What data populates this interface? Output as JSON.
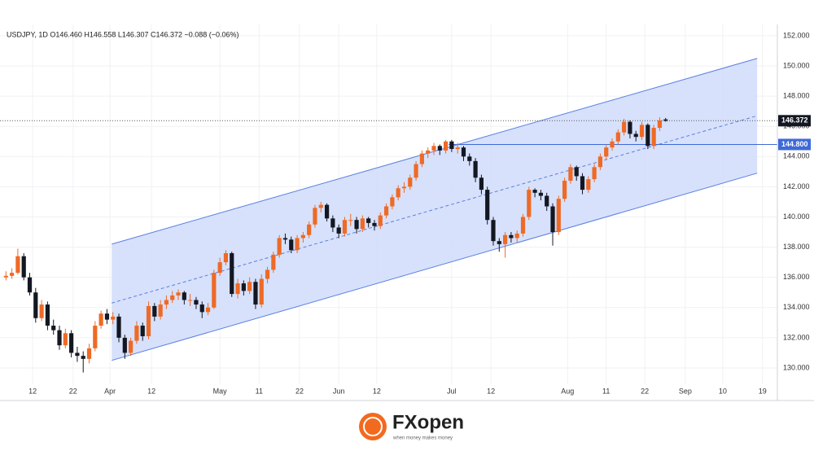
{
  "chart_data": {
    "type": "candlestick",
    "legend_text": "USDJPY, 1D  O146.460  H146.558  L146.307  C146.372  −0.088 (−0.06%)",
    "up_color": "#ee6a26",
    "down_color": "#131722",
    "ylim": [
      127.95,
      152.75
    ],
    "xlim": [
      -1,
      129.8
    ],
    "grid": true,
    "yticks": [
      {
        "value": 130,
        "label": "130.000"
      },
      {
        "value": 132,
        "label": "132.000"
      },
      {
        "value": 134,
        "label": "134.000"
      },
      {
        "value": 136,
        "label": "136.000"
      },
      {
        "value": 138,
        "label": "138.000"
      },
      {
        "value": 140,
        "label": "140.000"
      },
      {
        "value": 142,
        "label": "142.000"
      },
      {
        "value": 144,
        "label": "144.000"
      },
      {
        "value": 146,
        "label": "146.000"
      },
      {
        "value": 148,
        "label": "148.000"
      },
      {
        "value": 150,
        "label": "150.000"
      },
      {
        "value": 152,
        "label": "152.000"
      }
    ],
    "xticks": [
      {
        "value": 4.5,
        "label": "12"
      },
      {
        "value": 11.3,
        "label": "22"
      },
      {
        "value": 17.5,
        "label": "Apr"
      },
      {
        "value": 24.5,
        "label": "12"
      },
      {
        "value": 36,
        "label": "May"
      },
      {
        "value": 42.6,
        "label": "11"
      },
      {
        "value": 49.4,
        "label": "22"
      },
      {
        "value": 56,
        "label": "Jun"
      },
      {
        "value": 62.4,
        "label": "12"
      },
      {
        "value": 75,
        "label": "Jul"
      },
      {
        "value": 81.6,
        "label": "12"
      },
      {
        "value": 94.5,
        "label": "Aug"
      },
      {
        "value": 101,
        "label": "11"
      },
      {
        "value": 107.5,
        "label": "22"
      },
      {
        "value": 114.3,
        "label": "Sep"
      },
      {
        "value": 120.6,
        "label": "10"
      },
      {
        "value": 127.3,
        "label": "19"
      }
    ],
    "channel": {
      "x": [
        17.8,
        126.4
      ],
      "upper": [
        138.2,
        150.5
      ],
      "middle": [
        134.3,
        146.7
      ],
      "lower": [
        130.5,
        142.9
      ],
      "color": "#5b7fe3",
      "fill": "#d3defb"
    },
    "level": {
      "x": 74.5,
      "value": 144.8,
      "label": "144.800",
      "color": "#3e6ad8"
    },
    "price_line": {
      "value": 146.372,
      "label": "146.372"
    },
    "candles": [
      [
        136.0,
        136.4,
        135.8,
        136.1
      ],
      [
        136.1,
        136.6,
        135.9,
        136.3
      ],
      [
        136.3,
        137.9,
        136.2,
        137.4
      ],
      [
        137.4,
        137.6,
        135.8,
        136.0
      ],
      [
        136.0,
        136.3,
        134.8,
        135.0
      ],
      [
        135.0,
        135.3,
        133.0,
        133.3
      ],
      [
        133.3,
        134.5,
        133.1,
        134.2
      ],
      [
        134.2,
        134.4,
        132.5,
        132.8
      ],
      [
        132.8,
        133.2,
        132.2,
        132.5
      ],
      [
        132.5,
        132.8,
        131.2,
        131.5
      ],
      [
        131.5,
        132.6,
        131.3,
        132.3
      ],
      [
        132.3,
        132.5,
        130.7,
        131.0
      ],
      [
        131.0,
        131.4,
        130.4,
        130.8
      ],
      [
        130.8,
        131.1,
        129.7,
        130.6
      ],
      [
        130.6,
        131.6,
        130.3,
        131.3
      ],
      [
        131.3,
        133.1,
        131.1,
        132.8
      ],
      [
        132.8,
        133.8,
        132.6,
        133.6
      ],
      [
        133.6,
        133.9,
        132.9,
        133.2
      ],
      [
        133.2,
        133.7,
        132.9,
        133.4
      ],
      [
        133.4,
        133.6,
        131.7,
        132.0
      ],
      [
        132.0,
        132.2,
        130.6,
        131.0
      ],
      [
        131.0,
        132.0,
        130.8,
        131.8
      ],
      [
        131.8,
        133.1,
        131.6,
        132.8
      ],
      [
        132.8,
        133.0,
        131.8,
        132.1
      ],
      [
        132.1,
        134.4,
        131.9,
        134.1
      ],
      [
        134.1,
        134.3,
        133.1,
        133.4
      ],
      [
        133.4,
        134.5,
        133.2,
        134.2
      ],
      [
        134.2,
        134.8,
        133.9,
        134.5
      ],
      [
        134.5,
        135.1,
        134.3,
        134.8
      ],
      [
        134.8,
        135.2,
        134.5,
        135.0
      ],
      [
        135.0,
        135.1,
        134.2,
        134.5
      ],
      [
        134.5,
        134.9,
        134.1,
        134.5
      ],
      [
        134.5,
        134.7,
        133.9,
        134.2
      ],
      [
        134.2,
        134.4,
        133.3,
        133.7
      ],
      [
        133.7,
        134.3,
        133.5,
        134.0
      ],
      [
        134.0,
        136.5,
        133.9,
        136.3
      ],
      [
        136.3,
        137.3,
        136.1,
        137.0
      ],
      [
        137.0,
        137.8,
        136.8,
        137.6
      ],
      [
        137.6,
        137.7,
        134.7,
        134.9
      ],
      [
        134.9,
        135.9,
        134.6,
        135.6
      ],
      [
        135.6,
        135.8,
        134.8,
        135.1
      ],
      [
        135.1,
        136.0,
        134.9,
        135.7
      ],
      [
        135.7,
        135.9,
        133.9,
        134.2
      ],
      [
        134.2,
        136.2,
        134.0,
        135.9
      ],
      [
        135.9,
        136.7,
        135.6,
        136.5
      ],
      [
        136.5,
        137.7,
        136.3,
        137.5
      ],
      [
        137.5,
        138.8,
        137.3,
        138.6
      ],
      [
        138.6,
        138.9,
        138.2,
        138.5
      ],
      [
        138.5,
        138.7,
        137.6,
        137.8
      ],
      [
        137.8,
        138.8,
        137.6,
        138.6
      ],
      [
        138.6,
        139.0,
        138.3,
        138.8
      ],
      [
        138.8,
        139.7,
        138.6,
        139.5
      ],
      [
        139.5,
        140.8,
        139.3,
        140.6
      ],
      [
        140.6,
        141.0,
        140.3,
        140.8
      ],
      [
        140.8,
        140.9,
        139.7,
        139.9
      ],
      [
        139.9,
        140.1,
        139.0,
        139.3
      ],
      [
        139.3,
        139.5,
        138.6,
        138.9
      ],
      [
        138.9,
        140.0,
        138.7,
        139.8
      ],
      [
        139.8,
        140.2,
        139.4,
        139.8
      ],
      [
        139.8,
        140.0,
        138.9,
        139.2
      ],
      [
        139.2,
        140.1,
        139.0,
        139.9
      ],
      [
        139.9,
        140.0,
        139.3,
        139.6
      ],
      [
        139.6,
        139.8,
        139.1,
        139.4
      ],
      [
        139.4,
        140.3,
        139.2,
        140.1
      ],
      [
        140.1,
        140.9,
        139.9,
        140.7
      ],
      [
        140.7,
        141.5,
        140.5,
        141.3
      ],
      [
        141.3,
        142.1,
        141.1,
        141.9
      ],
      [
        141.9,
        142.3,
        141.6,
        142.0
      ],
      [
        142.0,
        142.8,
        141.8,
        142.6
      ],
      [
        142.6,
        143.7,
        142.4,
        143.5
      ],
      [
        143.5,
        144.4,
        143.3,
        144.2
      ],
      [
        144.2,
        144.6,
        143.9,
        144.4
      ],
      [
        144.4,
        144.9,
        144.1,
        144.7
      ],
      [
        144.7,
        144.8,
        144.1,
        144.4
      ],
      [
        144.4,
        145.1,
        144.2,
        145.0
      ],
      [
        145.0,
        145.1,
        144.3,
        144.5
      ],
      [
        144.5,
        144.9,
        144.2,
        144.6
      ],
      [
        144.6,
        144.7,
        143.7,
        144.0
      ],
      [
        144.0,
        144.2,
        143.4,
        143.7
      ],
      [
        143.7,
        143.9,
        142.3,
        142.6
      ],
      [
        142.6,
        142.8,
        141.5,
        141.8
      ],
      [
        141.8,
        142.0,
        139.5,
        139.8
      ],
      [
        139.8,
        140.0,
        138.1,
        138.4
      ],
      [
        138.4,
        138.6,
        137.7,
        138.2
      ],
      [
        138.2,
        139.0,
        137.3,
        138.8
      ],
      [
        138.8,
        139.0,
        138.3,
        138.6
      ],
      [
        138.6,
        139.1,
        138.3,
        138.9
      ],
      [
        138.9,
        140.2,
        138.7,
        140.0
      ],
      [
        140.0,
        142.0,
        139.8,
        141.8
      ],
      [
        141.8,
        141.9,
        141.3,
        141.6
      ],
      [
        141.6,
        141.8,
        141.1,
        141.4
      ],
      [
        141.4,
        141.6,
        140.4,
        140.7
      ],
      [
        140.7,
        140.9,
        138.1,
        139.0
      ],
      [
        139.0,
        141.4,
        138.8,
        141.2
      ],
      [
        141.2,
        142.6,
        141.0,
        142.4
      ],
      [
        142.4,
        143.5,
        142.2,
        143.3
      ],
      [
        143.3,
        143.4,
        142.4,
        142.7
      ],
      [
        142.7,
        142.9,
        141.5,
        141.8
      ],
      [
        141.8,
        142.7,
        141.6,
        142.5
      ],
      [
        142.5,
        143.5,
        142.3,
        143.3
      ],
      [
        143.3,
        144.2,
        143.1,
        144.0
      ],
      [
        144.0,
        144.8,
        143.8,
        144.6
      ],
      [
        144.6,
        145.2,
        144.4,
        145.0
      ],
      [
        145.0,
        145.8,
        144.8,
        145.6
      ],
      [
        145.6,
        146.5,
        145.4,
        146.3
      ],
      [
        146.3,
        146.4,
        145.2,
        145.5
      ],
      [
        145.5,
        145.7,
        145.0,
        145.3
      ],
      [
        145.3,
        146.3,
        145.1,
        146.1
      ],
      [
        146.1,
        146.2,
        144.5,
        144.7
      ],
      [
        144.7,
        146.1,
        144.5,
        145.9
      ],
      [
        145.9,
        146.6,
        145.7,
        146.4
      ],
      [
        146.46,
        146.558,
        146.307,
        146.372
      ]
    ]
  },
  "footer": {
    "brand": "FXopen",
    "tagline": "when money makes money"
  }
}
